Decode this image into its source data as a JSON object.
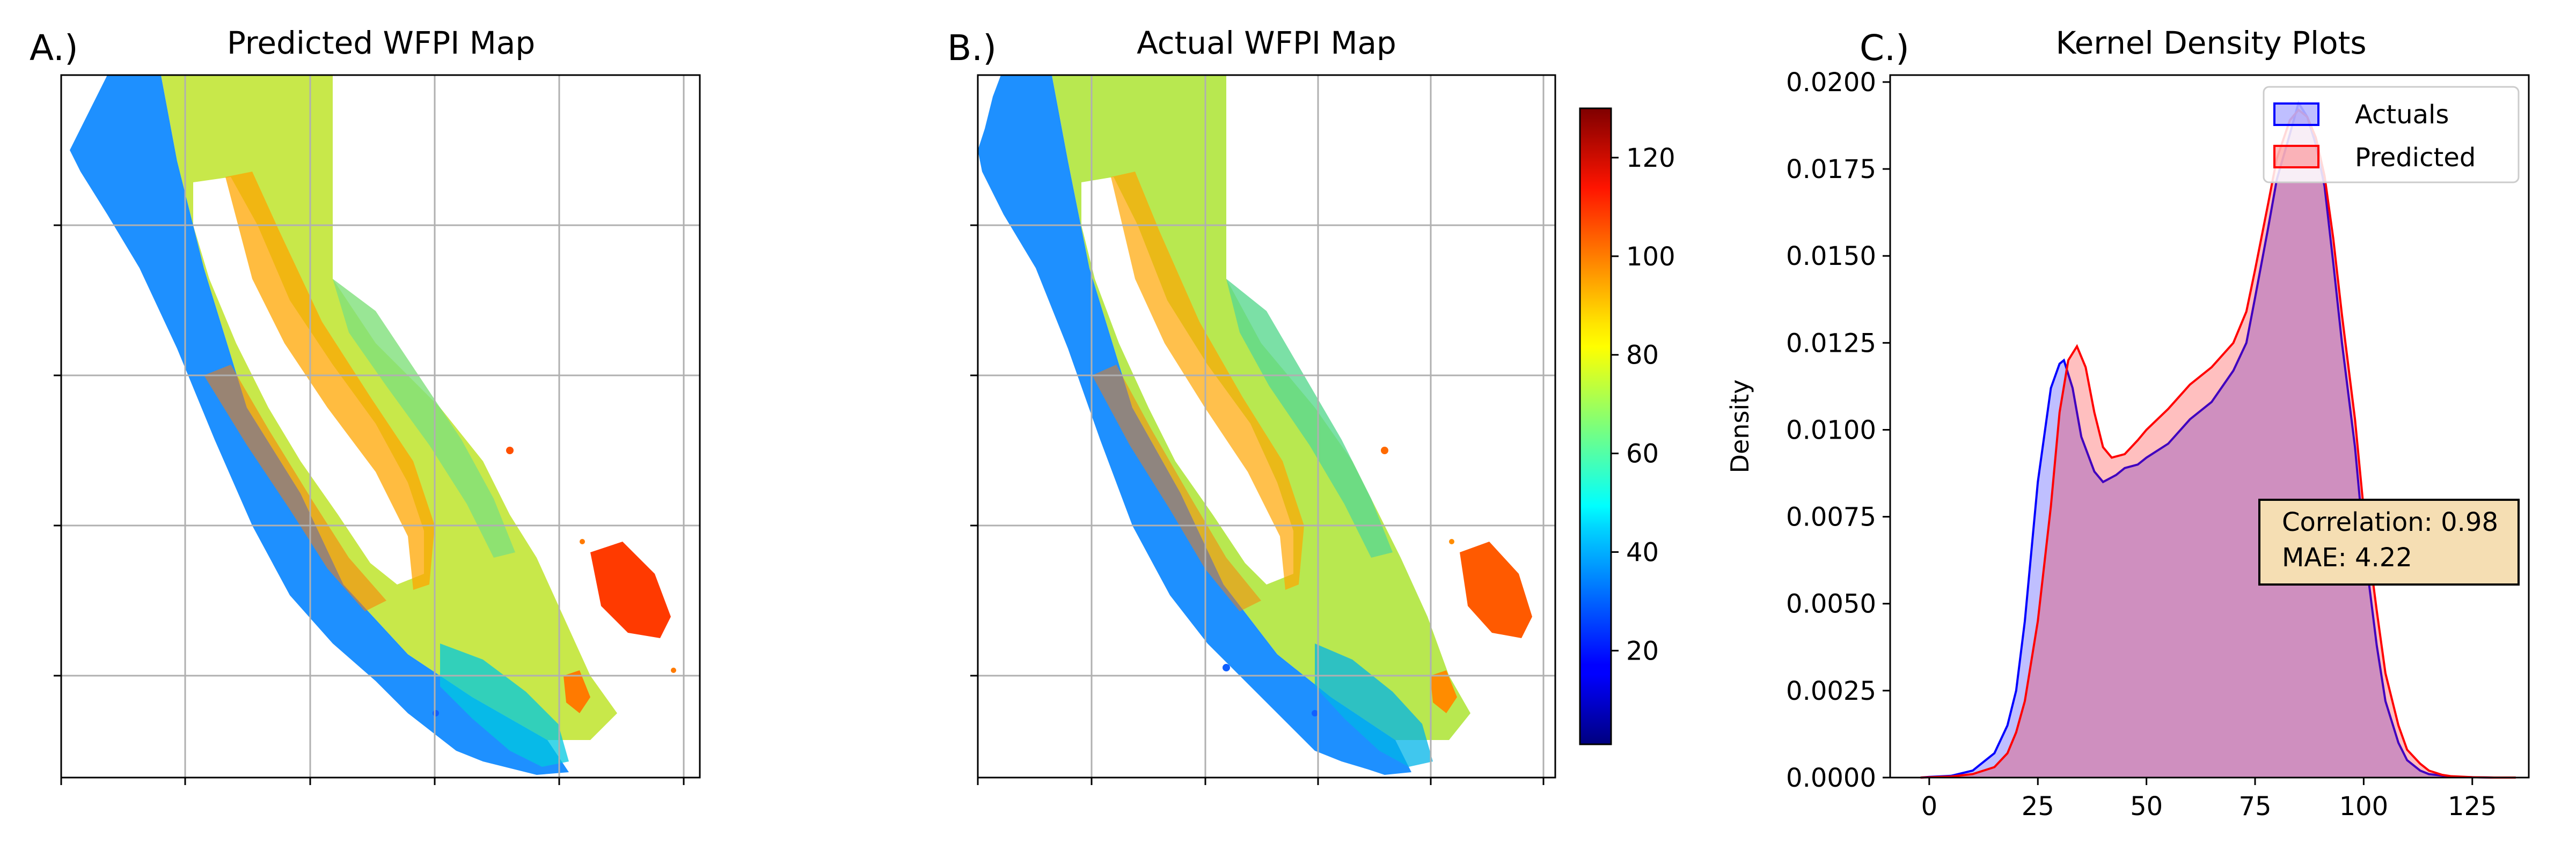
{
  "panels": {
    "a": {
      "label": "A.)",
      "title": "Predicted WFPI Map"
    },
    "b": {
      "label": "B.)",
      "title": "Actual WFPI Map"
    },
    "c": {
      "label": "C.)",
      "title": "Kernel Density Plots"
    }
  },
  "colorbar": {
    "colormap": "jet",
    "range": [
      1,
      130
    ],
    "ticks": [
      "20",
      "40",
      "60",
      "80",
      "100",
      "120"
    ],
    "tick_values": [
      20,
      40,
      60,
      80,
      100,
      120
    ]
  },
  "annotation": {
    "line1": "Correlation: 0.98",
    "line2": "MAE: 4.22"
  },
  "chart_data": {
    "type": "area",
    "title": "Kernel Density Plots",
    "xlabel": "",
    "ylabel": "Density",
    "xlim": [
      -9,
      138
    ],
    "ylim": [
      0,
      0.0202
    ],
    "xticks": [
      0,
      25,
      50,
      75,
      100,
      125
    ],
    "xtick_labels": [
      "0",
      "25",
      "50",
      "75",
      "100",
      "125"
    ],
    "yticks": [
      0,
      0.0025,
      0.005,
      0.0075,
      0.01,
      0.0125,
      0.015,
      0.0175,
      0.02
    ],
    "ytick_labels": [
      "0.0000",
      "0.0025",
      "0.0050",
      "0.0075",
      "0.0100",
      "0.0125",
      "0.0150",
      "0.0175",
      "0.0200"
    ],
    "legend_position": "top-right",
    "series": [
      {
        "name": "Actuals",
        "color": "#0000ff",
        "x": [
          -2,
          0,
          5,
          10,
          15,
          18,
          20,
          22,
          25,
          28,
          30,
          31,
          33,
          35,
          38,
          40,
          43,
          45,
          48,
          50,
          55,
          60,
          65,
          70,
          73,
          75,
          78,
          80,
          83,
          85,
          87,
          89,
          91,
          93,
          95,
          98,
          100,
          103,
          105,
          108,
          110,
          113,
          115,
          120,
          125,
          130,
          135
        ],
        "y": [
          0.0,
          2e-05,
          5e-05,
          0.0002,
          0.0007,
          0.0015,
          0.0025,
          0.0045,
          0.0085,
          0.0112,
          0.0119,
          0.012,
          0.0112,
          0.0098,
          0.0088,
          0.0085,
          0.0087,
          0.0089,
          0.009,
          0.0092,
          0.0096,
          0.0103,
          0.0108,
          0.0117,
          0.0125,
          0.0138,
          0.0158,
          0.0172,
          0.0185,
          0.0194,
          0.019,
          0.0182,
          0.017,
          0.0148,
          0.0125,
          0.0095,
          0.0068,
          0.0038,
          0.0022,
          0.001,
          0.0005,
          0.0002,
          0.0001,
          3e-05,
          1e-05,
          0.0,
          0.0
        ]
      },
      {
        "name": "Predicted",
        "color": "#ff0000",
        "x": [
          -2,
          0,
          5,
          10,
          15,
          18,
          20,
          22,
          25,
          28,
          30,
          32,
          34,
          36,
          38,
          40,
          42,
          45,
          48,
          50,
          55,
          60,
          65,
          70,
          73,
          75,
          78,
          80,
          83,
          85,
          87,
          89,
          91,
          93,
          95,
          98,
          100,
          103,
          105,
          108,
          110,
          113,
          115,
          118,
          120,
          125,
          130,
          135
        ],
        "y": [
          0.0,
          1e-05,
          3e-05,
          0.0001,
          0.0003,
          0.0007,
          0.0013,
          0.0022,
          0.0045,
          0.0078,
          0.0105,
          0.012,
          0.0124,
          0.0118,
          0.0105,
          0.0095,
          0.0092,
          0.0093,
          0.0097,
          0.01,
          0.0106,
          0.0113,
          0.0118,
          0.0125,
          0.0134,
          0.0146,
          0.0165,
          0.0178,
          0.0189,
          0.0192,
          0.019,
          0.0184,
          0.0173,
          0.0155,
          0.0133,
          0.0103,
          0.0077,
          0.0048,
          0.003,
          0.0015,
          0.0008,
          0.0004,
          0.0002,
          8e-05,
          4e-05,
          1e-05,
          0.0,
          0.0
        ]
      }
    ]
  }
}
